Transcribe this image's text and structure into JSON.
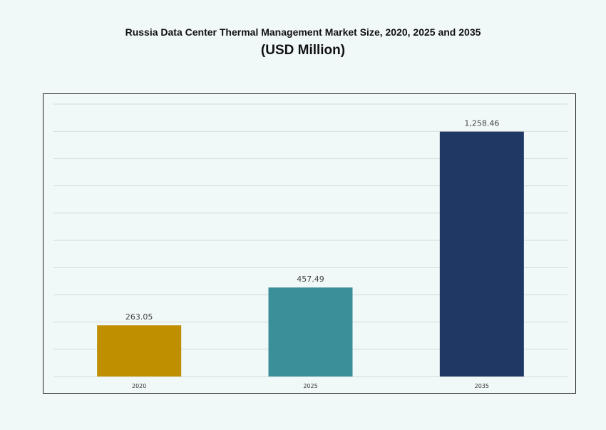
{
  "chart_data": {
    "type": "bar",
    "title": "Russia Data Center Thermal Management Market Size, 2020, 2025 and 2035",
    "subtitle": "(USD Million)",
    "categories": [
      "2020",
      "2025",
      "2035"
    ],
    "values": [
      263.05,
      457.49,
      1258.46
    ],
    "data_labels": [
      "263.05",
      "457.49",
      "1,258.46"
    ],
    "colors": [
      "#bf8f00",
      "#3a8f98",
      "#1f3864"
    ],
    "xlabel": "",
    "ylabel": "",
    "ylim": [
      0,
      1400
    ],
    "grid": true,
    "legend": "none"
  }
}
